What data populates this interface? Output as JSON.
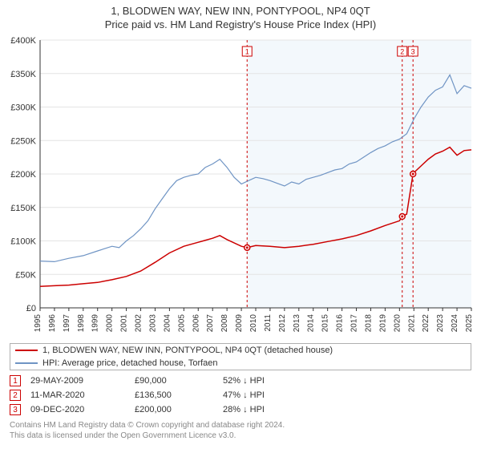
{
  "title": "1, BLODWEN WAY, NEW INN, PONTYPOOL, NP4 0QT",
  "subtitle": "Price paid vs. HM Land Registry's House Price Index (HPI)",
  "chart": {
    "type": "line",
    "background": "#ffffff",
    "grid_color": "#e4e4e4",
    "shade_color": "#eaf2f9",
    "axis_color": "#333333",
    "x": {
      "min": 1995,
      "max": 2025,
      "ticks": [
        1995,
        1996,
        1997,
        1998,
        1999,
        2000,
        2001,
        2002,
        2003,
        2004,
        2005,
        2006,
        2007,
        2008,
        2009,
        2010,
        2011,
        2012,
        2013,
        2014,
        2015,
        2016,
        2017,
        2018,
        2019,
        2020,
        2021,
        2022,
        2023,
        2024,
        2025
      ]
    },
    "y": {
      "min": 0,
      "max": 400000,
      "tick_step": 50000,
      "prefix": "£",
      "suffix": "K",
      "divisor": 1000
    },
    "shaded_from": 2009.4,
    "series": [
      {
        "id": "hpi",
        "label": "HPI: Average price, detached house, Torfaen",
        "color": "#6f94c4",
        "width": 1.2,
        "points": [
          [
            1995,
            70000
          ],
          [
            1996,
            69000
          ],
          [
            1997,
            74000
          ],
          [
            1998,
            78000
          ],
          [
            1999,
            85000
          ],
          [
            2000,
            92000
          ],
          [
            2000.5,
            90000
          ],
          [
            2001,
            100000
          ],
          [
            2001.5,
            108000
          ],
          [
            2002,
            118000
          ],
          [
            2002.5,
            130000
          ],
          [
            2003,
            148000
          ],
          [
            2003.5,
            163000
          ],
          [
            2004,
            178000
          ],
          [
            2004.5,
            190000
          ],
          [
            2005,
            195000
          ],
          [
            2005.5,
            198000
          ],
          [
            2006,
            200000
          ],
          [
            2006.5,
            210000
          ],
          [
            2007,
            215000
          ],
          [
            2007.5,
            222000
          ],
          [
            2008,
            210000
          ],
          [
            2008.5,
            195000
          ],
          [
            2009,
            185000
          ],
          [
            2009.5,
            190000
          ],
          [
            2010,
            195000
          ],
          [
            2010.5,
            193000
          ],
          [
            2011,
            190000
          ],
          [
            2011.5,
            186000
          ],
          [
            2012,
            182000
          ],
          [
            2012.5,
            188000
          ],
          [
            2013,
            185000
          ],
          [
            2013.5,
            192000
          ],
          [
            2014,
            195000
          ],
          [
            2014.5,
            198000
          ],
          [
            2015,
            202000
          ],
          [
            2015.5,
            206000
          ],
          [
            2016,
            208000
          ],
          [
            2016.5,
            215000
          ],
          [
            2017,
            218000
          ],
          [
            2017.5,
            225000
          ],
          [
            2018,
            232000
          ],
          [
            2018.5,
            238000
          ],
          [
            2019,
            242000
          ],
          [
            2019.5,
            248000
          ],
          [
            2020,
            252000
          ],
          [
            2020.5,
            260000
          ],
          [
            2021,
            282000
          ],
          [
            2021.5,
            300000
          ],
          [
            2022,
            315000
          ],
          [
            2022.5,
            325000
          ],
          [
            2023,
            330000
          ],
          [
            2023.5,
            348000
          ],
          [
            2024,
            320000
          ],
          [
            2024.5,
            332000
          ],
          [
            2025,
            328000
          ]
        ]
      },
      {
        "id": "price_paid",
        "label": "1, BLODWEN WAY, NEW INN, PONTYPOOL, NP4 0QT (detached house)",
        "color": "#cc0000",
        "width": 1.5,
        "points": [
          [
            1995,
            32000
          ],
          [
            1996,
            33000
          ],
          [
            1997,
            34000
          ],
          [
            1998,
            36000
          ],
          [
            1999,
            38000
          ],
          [
            2000,
            42000
          ],
          [
            2001,
            47000
          ],
          [
            2002,
            55000
          ],
          [
            2003,
            68000
          ],
          [
            2004,
            82000
          ],
          [
            2005,
            92000
          ],
          [
            2006,
            98000
          ],
          [
            2007,
            104000
          ],
          [
            2007.5,
            108000
          ],
          [
            2008,
            102000
          ],
          [
            2009,
            92000
          ],
          [
            2009.4,
            90000
          ],
          [
            2010,
            93000
          ],
          [
            2011,
            92000
          ],
          [
            2012,
            90000
          ],
          [
            2013,
            92000
          ],
          [
            2014,
            95000
          ],
          [
            2015,
            99000
          ],
          [
            2016,
            103000
          ],
          [
            2017,
            108000
          ],
          [
            2018,
            115000
          ],
          [
            2019,
            123000
          ],
          [
            2020,
            130000
          ],
          [
            2020.19,
            136500
          ],
          [
            2020.5,
            140000
          ],
          [
            2020.94,
            200000
          ],
          [
            2021,
            202000
          ],
          [
            2021.5,
            212000
          ],
          [
            2022,
            222000
          ],
          [
            2022.5,
            230000
          ],
          [
            2023,
            234000
          ],
          [
            2023.5,
            240000
          ],
          [
            2024,
            228000
          ],
          [
            2024.5,
            235000
          ],
          [
            2025,
            236000
          ]
        ]
      }
    ],
    "markers": [
      {
        "n": "1",
        "year": 2009.4,
        "price": 90000,
        "color": "#cc0000"
      },
      {
        "n": "2",
        "year": 2020.19,
        "price": 136500,
        "color": "#cc0000"
      },
      {
        "n": "3",
        "year": 2020.94,
        "price": 200000,
        "color": "#cc0000"
      }
    ]
  },
  "legend": [
    {
      "color": "#cc0000",
      "label": "1, BLODWEN WAY, NEW INN, PONTYPOOL, NP4 0QT (detached house)"
    },
    {
      "color": "#6f94c4",
      "label": "HPI: Average price, detached house, Torfaen"
    }
  ],
  "events": [
    {
      "n": "1",
      "date": "29-MAY-2009",
      "price": "£90,000",
      "delta": "52% ↓ HPI",
      "color": "#cc0000"
    },
    {
      "n": "2",
      "date": "11-MAR-2020",
      "price": "£136,500",
      "delta": "47% ↓ HPI",
      "color": "#cc0000"
    },
    {
      "n": "3",
      "date": "09-DEC-2020",
      "price": "£200,000",
      "delta": "28% ↓ HPI",
      "color": "#cc0000"
    }
  ],
  "footer": {
    "line1": "Contains HM Land Registry data © Crown copyright and database right 2024.",
    "line2": "This data is licensed under the Open Government Licence v3.0."
  }
}
